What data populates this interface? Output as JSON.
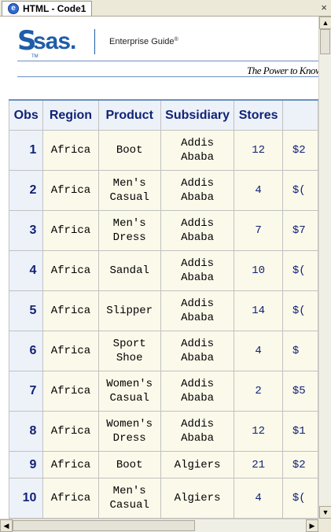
{
  "tab": {
    "label": "HTML - Code1",
    "icon": "html-document-icon"
  },
  "close": {
    "glyph": "×",
    "icon": "close-icon"
  },
  "banner": {
    "logo_s": "S",
    "logo_word": "sas.",
    "logo_tm": "TM",
    "product": "Enterprise Guide",
    "product_reg": "®",
    "tagline": "The Power to Know"
  },
  "table": {
    "headers": {
      "obs": "Obs",
      "region": "Region",
      "product": "Product",
      "subsidiary": "Subsidiary",
      "stores": "Stores",
      "sales": ""
    },
    "rows": [
      {
        "obs": "1",
        "region": "Africa",
        "product": "Boot",
        "subsidiary": "Addis Ababa",
        "stores": "12",
        "sales": "$2"
      },
      {
        "obs": "2",
        "region": "Africa",
        "product": "Men's Casual",
        "subsidiary": "Addis Ababa",
        "stores": "4",
        "sales": "$("
      },
      {
        "obs": "3",
        "region": "Africa",
        "product": "Men's Dress",
        "subsidiary": "Addis Ababa",
        "stores": "7",
        "sales": "$7"
      },
      {
        "obs": "4",
        "region": "Africa",
        "product": "Sandal",
        "subsidiary": "Addis Ababa",
        "stores": "10",
        "sales": "$("
      },
      {
        "obs": "5",
        "region": "Africa",
        "product": "Slipper",
        "subsidiary": "Addis Ababa",
        "stores": "14",
        "sales": "$("
      },
      {
        "obs": "6",
        "region": "Africa",
        "product": "Sport Shoe",
        "subsidiary": "Addis Ababa",
        "stores": "4",
        "sales": "$"
      },
      {
        "obs": "7",
        "region": "Africa",
        "product": "Women's Casual",
        "subsidiary": "Addis Ababa",
        "stores": "2",
        "sales": "$5"
      },
      {
        "obs": "8",
        "region": "Africa",
        "product": "Women's Dress",
        "subsidiary": "Addis Ababa",
        "stores": "12",
        "sales": "$1"
      },
      {
        "obs": "9",
        "region": "Africa",
        "product": "Boot",
        "subsidiary": "Algiers",
        "stores": "21",
        "sales": "$2"
      },
      {
        "obs": "10",
        "region": "Africa",
        "product": "Men's Casual",
        "subsidiary": "Algiers",
        "stores": "4",
        "sales": "$("
      }
    ]
  },
  "scrollbars": {
    "up_glyph": "▲",
    "down_glyph": "▼",
    "left_glyph": "◀",
    "right_glyph": "▶"
  },
  "colors": {
    "header_bg": "#edf2f9",
    "header_text": "#112277",
    "cell_bg": "#fbf9ea",
    "brand_blue": "#1f5da8"
  }
}
